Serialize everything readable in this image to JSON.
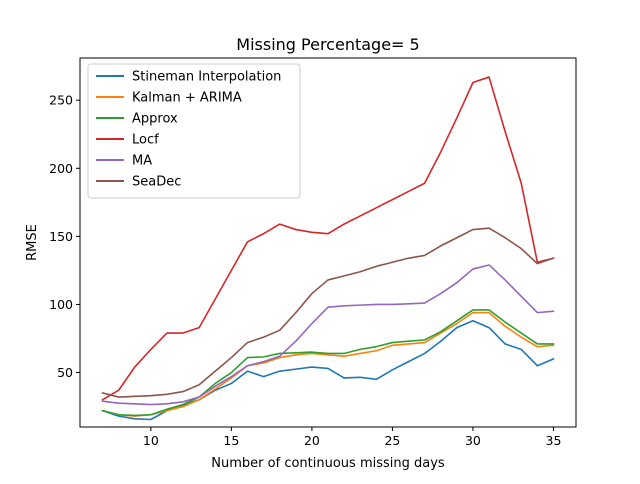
{
  "chart_data": {
    "type": "line",
    "title": "Missing Percentage= 5",
    "xlabel": "Number of continuous missing days",
    "ylabel": "RMSE",
    "xlim": [
      5.6,
      36.4
    ],
    "ylim": [
      10.0,
      281.0
    ],
    "xticks": [
      10,
      15,
      20,
      25,
      30,
      35
    ],
    "yticks": [
      50,
      100,
      150,
      200,
      250
    ],
    "grid": false,
    "legend_position": "upper-left",
    "x": [
      7,
      8,
      9,
      10,
      11,
      12,
      13,
      14,
      15,
      16,
      17,
      18,
      19,
      20,
      21,
      22,
      23,
      24,
      25,
      26,
      27,
      28,
      29,
      30,
      31,
      32,
      33,
      34,
      35
    ],
    "series": [
      {
        "name": "Stineman Interpolation",
        "color": "#1f77b4",
        "values": [
          22,
          18,
          16,
          15.5,
          22,
          26,
          30,
          37,
          42,
          51,
          47,
          51,
          52.5,
          54,
          53,
          46,
          46.5,
          45,
          52,
          58,
          64,
          73,
          83,
          88,
          83,
          71,
          67,
          55,
          60
        ]
      },
      {
        "name": "Kalman + ARIMA",
        "color": "#ff7f0e",
        "values": [
          22,
          19,
          18,
          19,
          22,
          25,
          30,
          38,
          46,
          55,
          57,
          61,
          63,
          64,
          63,
          62,
          64,
          66,
          70,
          71,
          72,
          79,
          86,
          94,
          94,
          84,
          76,
          69,
          70
        ]
      },
      {
        "name": "Approx",
        "color": "#2ca02c",
        "values": [
          22,
          19,
          18.5,
          19,
          23,
          26.5,
          32,
          42,
          50,
          61,
          61.5,
          64,
          64.5,
          65,
          64,
          64,
          67,
          69,
          72,
          73,
          74,
          80,
          88,
          96,
          96,
          87,
          79,
          71,
          71
        ]
      },
      {
        "name": "Locf",
        "color": "#d62728",
        "values": [
          30,
          37,
          54,
          67,
          79,
          79,
          83,
          104,
          125,
          146,
          152,
          159,
          155,
          153,
          152,
          159,
          165,
          171,
          177,
          183,
          189,
          212,
          237,
          263,
          267,
          227,
          189,
          131,
          134
        ]
      },
      {
        "name": "MA",
        "color": "#9467bd",
        "values": [
          29,
          27.5,
          27,
          26.5,
          27,
          28.5,
          32,
          40,
          47,
          55,
          58,
          62,
          73,
          86,
          98,
          99,
          99.5,
          100,
          100,
          100.5,
          101,
          108,
          116,
          126,
          129,
          118,
          106,
          94,
          95
        ]
      },
      {
        "name": "SeaDec",
        "color": "#8c564b",
        "values": [
          35,
          32,
          32.5,
          33,
          34,
          36,
          41,
          51,
          61,
          72,
          76,
          81,
          94,
          108,
          118,
          121,
          124,
          128,
          131,
          134,
          136,
          143,
          149,
          155,
          156,
          149,
          141,
          130,
          134
        ]
      }
    ]
  }
}
